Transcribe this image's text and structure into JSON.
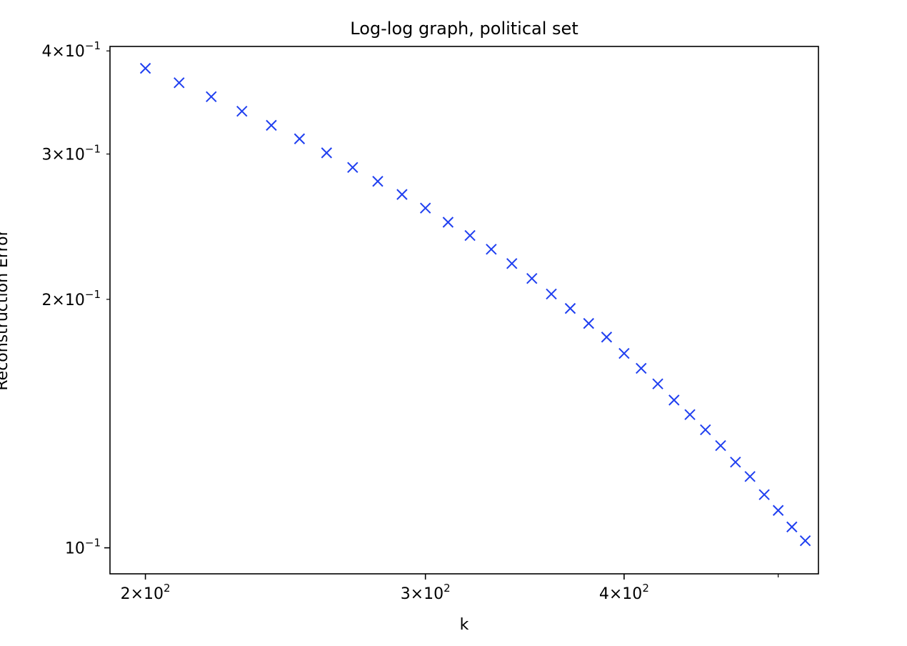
{
  "chart_data": {
    "type": "scatter",
    "title": "Log-log graph, political set",
    "xlabel": "k",
    "ylabel": "Reconstruction Error",
    "xscale": "log",
    "yscale": "log",
    "xlim": [
      190,
      530
    ],
    "ylim": [
      0.093,
      0.405
    ],
    "grid": false,
    "marker": "x",
    "color": "#1f3ff0",
    "x_ticks": [
      {
        "value": 200,
        "mantissa": "2",
        "exponent": "2"
      },
      {
        "value": 300,
        "mantissa": "3",
        "exponent": "2"
      },
      {
        "value": 400,
        "mantissa": "4",
        "exponent": "2"
      }
    ],
    "x_minor_ticks": [
      500
    ],
    "y_ticks": [
      {
        "value": 0.1,
        "mantissa": "",
        "exponent": "−1"
      },
      {
        "value": 0.2,
        "mantissa": "2",
        "exponent": "−1"
      },
      {
        "value": 0.3,
        "mantissa": "3",
        "exponent": "−1"
      },
      {
        "value": 0.4,
        "mantissa": "4",
        "exponent": "−1"
      }
    ],
    "series": [
      {
        "x": [
          200,
          210,
          220,
          230,
          240,
          250,
          260,
          270,
          280,
          290,
          300,
          310,
          320,
          330,
          340,
          350,
          360,
          370,
          380,
          390,
          400,
          410,
          420,
          430,
          440,
          450,
          460,
          470,
          480,
          490,
          500,
          510,
          520
        ],
        "y": [
          0.381,
          0.366,
          0.352,
          0.338,
          0.325,
          0.313,
          0.301,
          0.289,
          0.278,
          0.268,
          0.258,
          0.248,
          0.239,
          0.23,
          0.221,
          0.212,
          0.203,
          0.195,
          0.187,
          0.18,
          0.172,
          0.165,
          0.158,
          0.151,
          0.145,
          0.139,
          0.133,
          0.127,
          0.122,
          0.116,
          0.111,
          0.106,
          0.102
        ]
      }
    ]
  }
}
